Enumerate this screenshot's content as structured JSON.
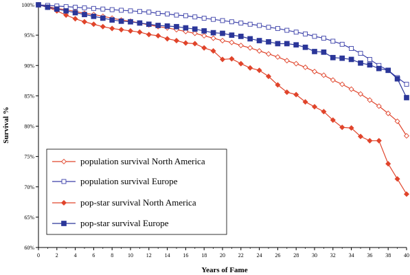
{
  "chart_data": {
    "type": "line",
    "xlabel": "Years of Fame",
    "ylabel": "Survival %",
    "xlim": [
      0,
      40
    ],
    "ylim": [
      60,
      100
    ],
    "x_ticks": [
      "0",
      "2",
      "4",
      "6",
      "8",
      "10",
      "12",
      "14",
      "16",
      "18",
      "20",
      "22",
      "24",
      "26",
      "28",
      "30",
      "32",
      "34",
      "36",
      "38",
      "40"
    ],
    "y_ticks": [
      "60%",
      "65%",
      "70%",
      "75%",
      "80%",
      "85%",
      "90%",
      "95%",
      "100%"
    ],
    "grid": false,
    "legend_position": "bottom-left",
    "x": [
      0,
      1,
      2,
      3,
      4,
      5,
      6,
      7,
      8,
      9,
      10,
      11,
      12,
      13,
      14,
      15,
      16,
      17,
      18,
      19,
      20,
      21,
      22,
      23,
      24,
      25,
      26,
      27,
      28,
      29,
      30,
      31,
      32,
      33,
      34,
      35,
      36,
      37,
      38,
      39,
      40
    ],
    "series": [
      {
        "name": "population survival North America",
        "color": "#e0442b",
        "marker": "diamond-open",
        "values": [
          100,
          99.7,
          99.4,
          99.2,
          98.9,
          98.6,
          98.4,
          98.1,
          97.8,
          97.5,
          97.3,
          97.0,
          96.7,
          96.4,
          96.2,
          95.9,
          95.6,
          95.3,
          94.9,
          94.5,
          94.1,
          93.8,
          93.3,
          92.9,
          92.4,
          91.9,
          91.4,
          90.8,
          90.3,
          89.7,
          89.0,
          88.4,
          87.6,
          86.9,
          86.1,
          85.3,
          84.3,
          83.3,
          82.1,
          80.8,
          78.4
        ]
      },
      {
        "name": "population survival Europe",
        "color": "#3a3fa8",
        "marker": "square-open",
        "values": [
          100,
          99.9,
          99.8,
          99.7,
          99.6,
          99.5,
          99.4,
          99.3,
          99.2,
          99.1,
          99.0,
          98.9,
          98.8,
          98.6,
          98.5,
          98.3,
          98.2,
          98.0,
          97.8,
          97.6,
          97.4,
          97.2,
          97.0,
          96.8,
          96.6,
          96.3,
          96.1,
          95.8,
          95.5,
          95.2,
          94.8,
          94.5,
          94.0,
          93.5,
          92.8,
          92.0,
          91.0,
          90.0,
          89.2,
          88.0,
          86.9
        ]
      },
      {
        "name": "pop-star survival North America",
        "color": "#e0442b",
        "marker": "diamond-filled",
        "values": [
          100,
          99.6,
          99.0,
          98.3,
          97.7,
          97.2,
          96.8,
          96.4,
          96.1,
          95.9,
          95.7,
          95.5,
          95.1,
          94.9,
          94.4,
          94.1,
          93.7,
          93.6,
          92.9,
          92.4,
          91.0,
          91.1,
          90.3,
          89.6,
          89.2,
          88.2,
          86.8,
          85.6,
          85.2,
          84.0,
          83.2,
          82.4,
          81.0,
          79.8,
          79.7,
          78.3,
          77.6,
          77.6,
          73.8,
          71.3,
          68.8
        ]
      },
      {
        "name": "pop-star survival Europe",
        "color": "#2b3699",
        "marker": "square-filled",
        "values": [
          100,
          99.6,
          99.3,
          99.0,
          98.7,
          98.4,
          98.1,
          97.8,
          97.5,
          97.3,
          97.2,
          97.0,
          96.8,
          96.6,
          96.5,
          96.4,
          96.2,
          96.0,
          95.7,
          95.4,
          95.3,
          95.0,
          94.8,
          94.4,
          94.1,
          93.9,
          93.6,
          93.6,
          93.4,
          93.0,
          92.3,
          92.2,
          91.3,
          91.2,
          91.0,
          90.4,
          90.1,
          89.5,
          89.2,
          87.8,
          84.7
        ]
      }
    ]
  }
}
